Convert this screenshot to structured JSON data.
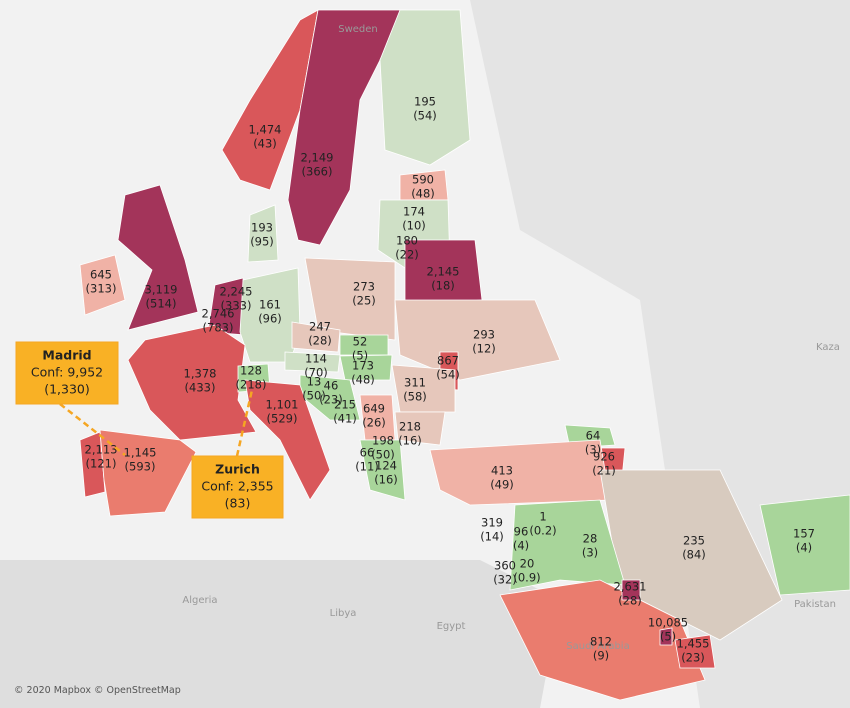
{
  "places": [
    "Sweden",
    "Algeria",
    "Libya",
    "Egypt",
    "Saudi Arabia",
    "Pakistan",
    "Kaza"
  ],
  "regions": [
    {
      "value": "1,474",
      "sub": "(43)"
    },
    {
      "value": "2,149",
      "sub": "(366)"
    },
    {
      "value": "195",
      "sub": "(54)"
    },
    {
      "value": "590",
      "sub": "(48)"
    },
    {
      "value": "174",
      "sub": "(10)"
    },
    {
      "value": "180",
      "sub": "(22)"
    },
    {
      "value": "2,145",
      "sub": "(18)"
    },
    {
      "value": "193",
      "sub": "(95)"
    },
    {
      "value": "645",
      "sub": "(313)"
    },
    {
      "value": "3,119",
      "sub": "(514)"
    },
    {
      "value": "2,245",
      "sub": "(333)"
    },
    {
      "value": "2,746",
      "sub": "(783)"
    },
    {
      "value": "161",
      "sub": "(96)"
    },
    {
      "value": "273",
      "sub": "(25)"
    },
    {
      "value": "247",
      "sub": "(28)"
    },
    {
      "value": "52",
      "sub": "(5)"
    },
    {
      "value": "293",
      "sub": "(12)"
    },
    {
      "value": "114",
      "sub": "(70)"
    },
    {
      "value": "173",
      "sub": "(48)"
    },
    {
      "value": "867",
      "sub": "(54)"
    },
    {
      "value": "1,378",
      "sub": "(433)"
    },
    {
      "value": "128",
      "sub": "(218)"
    },
    {
      "value": "13",
      "sub": "(50)"
    },
    {
      "value": "46",
      "sub": "(23)"
    },
    {
      "value": "311",
      "sub": "(58)"
    },
    {
      "value": "215",
      "sub": "(41)"
    },
    {
      "value": "649",
      "sub": "(26)"
    },
    {
      "value": "1,101",
      "sub": "(529)"
    },
    {
      "value": "218",
      "sub": "(16)"
    },
    {
      "value": "198",
      "sub": "(50)"
    },
    {
      "value": "66",
      "sub": "(11)"
    },
    {
      "value": "124",
      "sub": "(16)"
    },
    {
      "value": "2,113",
      "sub": "(121)"
    },
    {
      "value": "1,145",
      "sub": "(593)"
    },
    {
      "value": "64",
      "sub": "(3)"
    },
    {
      "value": "926",
      "sub": "(21)"
    },
    {
      "value": "413",
      "sub": "(49)"
    },
    {
      "value": "235",
      "sub": "(84)"
    },
    {
      "value": "157",
      "sub": "(4)"
    },
    {
      "value": "319",
      "sub": "(14)"
    },
    {
      "value": "96",
      "sub": "(4)"
    },
    {
      "value": "1",
      "sub": "(0.2)"
    },
    {
      "value": "28",
      "sub": "(3)"
    },
    {
      "value": "360",
      "sub": "(32)"
    },
    {
      "value": "20",
      "sub": "(0.9)"
    },
    {
      "value": "2,631",
      "sub": "(28)"
    },
    {
      "value": "812",
      "sub": "(9)"
    },
    {
      "value": "10,085",
      "sub": "(5)"
    },
    {
      "value": "1,455",
      "sub": "(23)"
    }
  ],
  "tooltips": [
    {
      "title": "Madrid",
      "line1": "Conf: 9,952",
      "line2": "(1,330)"
    },
    {
      "title": "Zurich",
      "line1": "Conf: 2,355",
      "line2": "(83)"
    }
  ],
  "attribution": "© 2020 Mapbox © OpenStreetMap"
}
